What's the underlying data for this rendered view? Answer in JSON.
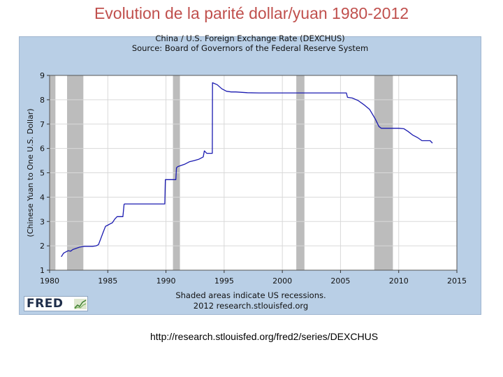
{
  "slide_title": "Evolution de la parité dollar/yuan 1980-2012",
  "source_url": "http://research.stlouisfed.org/fred2/series/DEXCHUS",
  "logo_text": "FRED",
  "chart_data": {
    "type": "line",
    "title": "China / U.S. Foreign Exchange Rate (DEXCHUS)",
    "subtitle": "Source: Board of Governors of the Federal Reserve System",
    "ylabel": "(Chinese Yuan to One U.S. Dollar)",
    "xlabel": "",
    "notes": [
      "Shaded areas indicate US recessions.",
      "2012 research.stlouisfed.org"
    ],
    "xlim": [
      1980,
      2015
    ],
    "ylim": [
      1,
      9
    ],
    "x_ticks": [
      1980,
      1985,
      1990,
      1995,
      2000,
      2005,
      2010,
      2015
    ],
    "y_ticks": [
      1,
      2,
      3,
      4,
      5,
      6,
      7,
      8,
      9
    ],
    "grid": true,
    "recession_color": "#bcbcbc",
    "line_color": "#1a1ab0",
    "recessions": [
      [
        1980.0,
        1980.5
      ],
      [
        1981.5,
        1982.9
      ],
      [
        1990.6,
        1991.2
      ],
      [
        2001.2,
        2001.9
      ],
      [
        2007.9,
        2009.5
      ]
    ],
    "series": [
      {
        "x": [
          1981.0,
          1981.2,
          1981.4,
          1981.6,
          1981.8,
          1982.0,
          1982.3,
          1982.6,
          1983.0,
          1983.3,
          1983.7,
          1984.0,
          1984.2,
          1984.4,
          1984.6,
          1984.8,
          1985.0,
          1985.2,
          1985.4,
          1985.6,
          1985.8,
          1986.0,
          1986.3,
          1986.4,
          1986.45,
          1987.0,
          1988.0,
          1989.0,
          1989.9,
          1989.95,
          1990.5,
          1990.85,
          1990.9,
          1991.0,
          1991.3,
          1991.6,
          1992.0,
          1992.4,
          1992.8,
          1993.0,
          1993.2,
          1993.3,
          1993.5,
          1993.8,
          1993.98,
          1994.0,
          1994.4,
          1994.8,
          1995.2,
          1995.6,
          1996.0,
          1997.0,
          1998.0,
          1999.0,
          2000.0,
          2001.0,
          2002.0,
          2003.0,
          2004.0,
          2005.5,
          2005.6,
          2006.0,
          2006.5,
          2007.0,
          2007.5,
          2008.0,
          2008.3,
          2008.5,
          2009.0,
          2010.0,
          2010.45,
          2010.8,
          2011.2,
          2011.6,
          2012.0,
          2012.4,
          2012.7,
          2012.9
        ],
        "y": [
          1.55,
          1.7,
          1.75,
          1.8,
          1.78,
          1.85,
          1.9,
          1.95,
          1.98,
          1.98,
          1.98,
          2.0,
          2.05,
          2.3,
          2.55,
          2.8,
          2.85,
          2.9,
          2.95,
          3.1,
          3.2,
          3.2,
          3.2,
          3.7,
          3.72,
          3.72,
          3.72,
          3.72,
          3.72,
          4.72,
          4.72,
          4.72,
          5.2,
          5.25,
          5.3,
          5.35,
          5.45,
          5.5,
          5.55,
          5.6,
          5.65,
          5.9,
          5.8,
          5.8,
          5.8,
          8.7,
          8.62,
          8.45,
          8.35,
          8.32,
          8.32,
          8.29,
          8.28,
          8.28,
          8.28,
          8.28,
          8.28,
          8.28,
          8.28,
          8.28,
          8.1,
          8.07,
          7.97,
          7.8,
          7.6,
          7.2,
          6.9,
          6.83,
          6.83,
          6.83,
          6.81,
          6.7,
          6.55,
          6.45,
          6.32,
          6.32,
          6.32,
          6.22
        ]
      }
    ]
  }
}
